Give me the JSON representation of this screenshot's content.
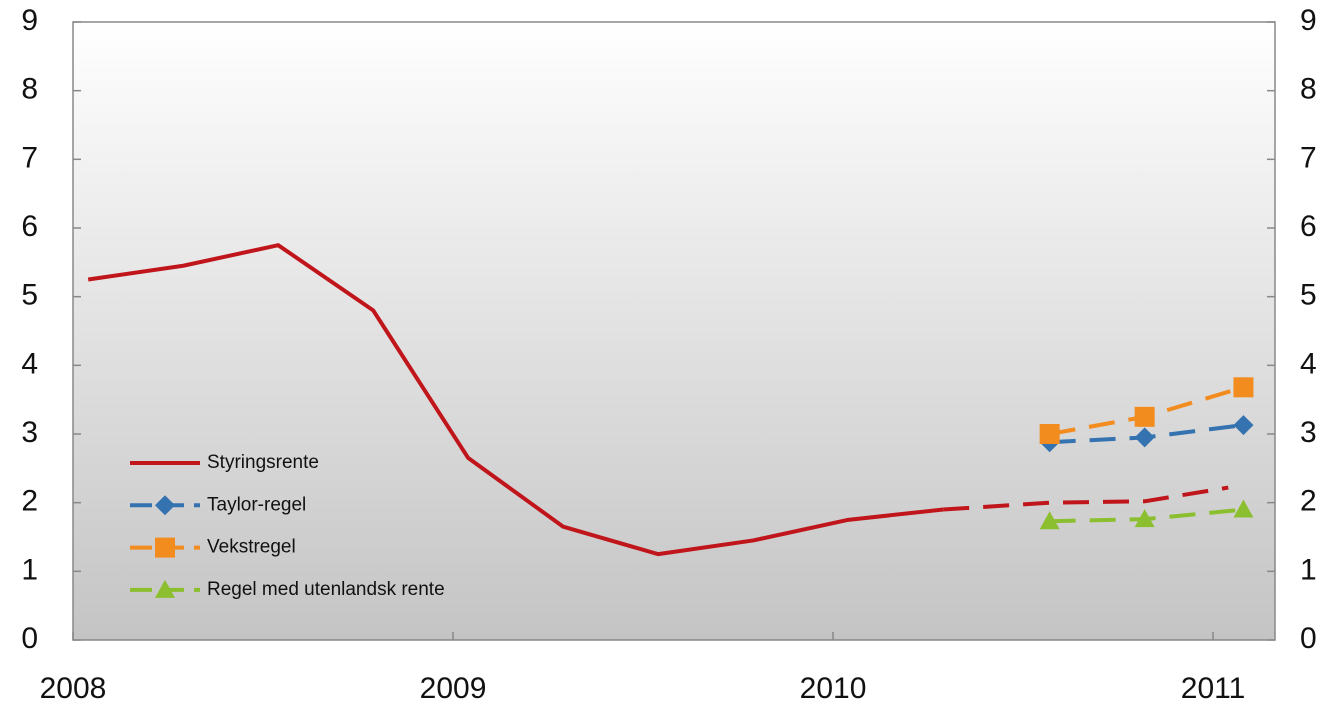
{
  "chart_data": {
    "type": "line",
    "series": [
      {
        "name": "Styringsrente",
        "color": "#c0161b",
        "marker": "none",
        "dashed_from": 9,
        "x": [
          2008.04,
          2008.29,
          2008.54,
          2008.79,
          2009.04,
          2009.29,
          2009.54,
          2009.79,
          2010.04,
          2010.29,
          2010.57,
          2010.82,
          2011.04
        ],
        "values": [
          5.25,
          5.45,
          5.75,
          4.8,
          2.65,
          1.65,
          1.25,
          1.45,
          1.75,
          1.9,
          2.0,
          2.02,
          2.22
        ]
      },
      {
        "name": "Taylor-regel",
        "color": "#3473b0",
        "marker": "diamond",
        "dashed_from": 0,
        "x": [
          2010.57,
          2010.82,
          2011.08
        ],
        "values": [
          2.88,
          2.95,
          3.13
        ]
      },
      {
        "name": "Vekstregel",
        "color": "#f28c1f",
        "marker": "square",
        "dashed_from": 0,
        "x": [
          2010.57,
          2010.82,
          2011.08
        ],
        "values": [
          3.0,
          3.25,
          3.68
        ]
      },
      {
        "name": "Regel med utenlandsk rente",
        "color": "#8cbf2f",
        "marker": "triangle",
        "dashed_from": 0,
        "x": [
          2010.57,
          2010.82,
          2011.08
        ],
        "values": [
          1.73,
          1.76,
          1.9
        ]
      }
    ],
    "xlim": [
      2008,
      2011.163
    ],
    "xticks": [
      2008,
      2009,
      2010,
      2011
    ],
    "ylim": [
      0,
      9
    ],
    "yticks": [
      0,
      1,
      2,
      3,
      4,
      5,
      6,
      7,
      8,
      9
    ],
    "y2lim": [
      0,
      9
    ],
    "y2ticks": [
      0,
      1,
      2,
      3,
      4,
      5,
      6,
      7,
      8,
      9
    ],
    "legend": "lower-left"
  }
}
